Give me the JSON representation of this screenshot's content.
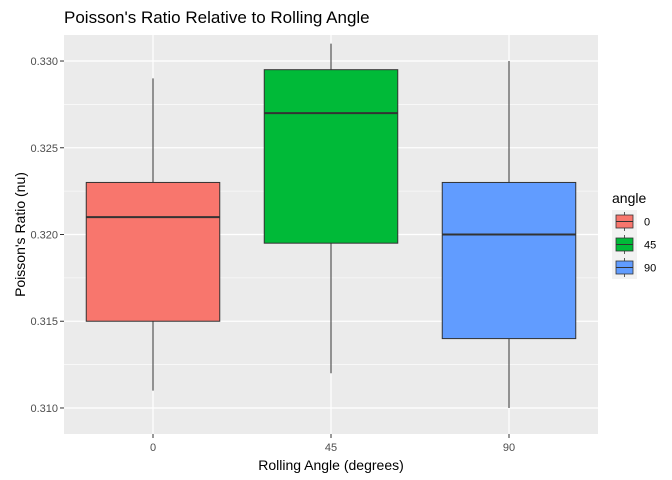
{
  "chart_data": {
    "type": "boxplot",
    "title": "Poisson's Ratio Relative to Rolling Angle",
    "xlabel": "Rolling Angle (degrees)",
    "ylabel": "Poisson's Ratio (nu)",
    "ylim": [
      0.3085,
      0.3315
    ],
    "yticks": [
      0.31,
      0.315,
      0.32,
      0.325,
      0.33
    ],
    "ytick_labels": [
      "0.310",
      "0.315",
      "0.320",
      "0.325",
      "0.330"
    ],
    "categories": [
      "0",
      "45",
      "90"
    ],
    "legend": {
      "title": "angle",
      "position": "right"
    },
    "grid": true,
    "series": [
      {
        "name": "0",
        "color": "#F8766D",
        "whisker_low": 0.311,
        "q1": 0.315,
        "median": 0.321,
        "q3": 0.323,
        "whisker_high": 0.329
      },
      {
        "name": "45",
        "color": "#00BA38",
        "whisker_low": 0.312,
        "q1": 0.3195,
        "median": 0.327,
        "q3": 0.3295,
        "whisker_high": 0.331
      },
      {
        "name": "90",
        "color": "#619CFF",
        "whisker_low": 0.31,
        "q1": 0.314,
        "median": 0.32,
        "q3": 0.323,
        "whisker_high": 0.33
      }
    ]
  }
}
